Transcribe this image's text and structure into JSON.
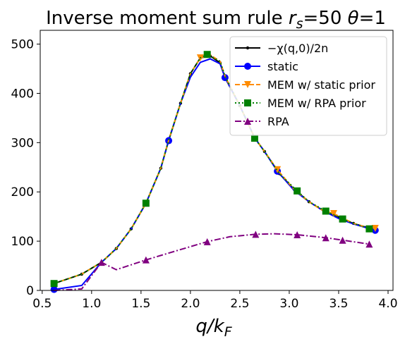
{
  "chart_data": {
    "type": "line",
    "title": "Inverse moment sum rule r_s=50 θ=1",
    "title_parts": {
      "prefix": "Inverse moment sum rule ",
      "r": "r",
      "r_sub": "s",
      "middle": "=50 ",
      "theta": "θ",
      "suffix": "=1"
    },
    "xlabel": "q/k_F",
    "xlabel_parts": {
      "q": "q/k",
      "sub": "F"
    },
    "ylabel": "",
    "xlim": [
      0.48,
      4.05
    ],
    "ylim": [
      0,
      528
    ],
    "xticks": [
      0.5,
      1.0,
      1.5,
      2.0,
      2.5,
      3.0,
      3.5,
      4.0
    ],
    "xtick_labels": [
      "0.5",
      "1.0",
      "1.5",
      "2.0",
      "2.5",
      "3.0",
      "3.5",
      "4.0"
    ],
    "yticks": [
      0,
      100,
      200,
      300,
      400,
      500
    ],
    "ytick_labels": [
      "0",
      "100",
      "200",
      "300",
      "400",
      "500"
    ],
    "grid": false,
    "legend_position": "top-right",
    "series": [
      {
        "name": "−χ(q,0)/2n",
        "color": "#000000",
        "linestyle": "solid",
        "marker": "dot",
        "x": [
          0.62,
          0.9,
          1.1,
          1.25,
          1.4,
          1.55,
          1.7,
          1.78,
          1.9,
          2.0,
          2.1,
          2.2,
          2.3,
          2.35,
          2.5,
          2.65,
          2.75,
          2.9,
          3.05,
          3.2,
          3.35,
          3.5,
          3.65,
          3.8,
          3.87
        ],
        "y": [
          14,
          33,
          57,
          85,
          125,
          177,
          248,
          305,
          380,
          440,
          472,
          476,
          462,
          432,
          375,
          310,
          282,
          237,
          205,
          180,
          161,
          148,
          136,
          127,
          122
        ],
        "show_markers": [
          0,
          1,
          2,
          3,
          4,
          5,
          6,
          7,
          8,
          9,
          10,
          11,
          12,
          13,
          14,
          15,
          16,
          17,
          18,
          19,
          20,
          21,
          22,
          23,
          24
        ]
      },
      {
        "name": "static",
        "color": "#0000ff",
        "linestyle": "solid",
        "marker": "circle",
        "x": [
          0.62,
          0.9,
          1.1,
          1.25,
          1.4,
          1.55,
          1.7,
          1.78,
          1.9,
          2.0,
          2.1,
          2.2,
          2.3,
          2.35,
          2.5,
          2.65,
          2.75,
          2.88,
          3.05,
          3.2,
          3.35,
          3.5,
          3.65,
          3.8,
          3.87
        ],
        "y": [
          2,
          10,
          57,
          85,
          125,
          177,
          248,
          304,
          380,
          433,
          463,
          470,
          460,
          432,
          375,
          310,
          282,
          242,
          203,
          180,
          161,
          146,
          135,
          126,
          122
        ],
        "show_markers": [
          0,
          7,
          13,
          17,
          24
        ]
      },
      {
        "name": "MEM w/ static prior",
        "color": "#ff8c00",
        "linestyle": "dashed",
        "marker": "triangle-down",
        "x": [
          0.62,
          0.9,
          1.1,
          1.25,
          1.4,
          1.55,
          1.7,
          1.78,
          1.9,
          2.0,
          2.1,
          2.2,
          2.3,
          2.35,
          2.5,
          2.65,
          2.75,
          2.88,
          3.05,
          3.2,
          3.35,
          3.45,
          3.65,
          3.8,
          3.87
        ],
        "y": [
          14,
          33,
          57,
          85,
          125,
          177,
          248,
          305,
          380,
          440,
          472,
          478,
          465,
          435,
          375,
          310,
          282,
          245,
          205,
          180,
          161,
          156,
          136,
          127,
          126
        ],
        "show_markers": [
          10,
          17,
          21,
          24
        ]
      },
      {
        "name": "MEM w/ RPA prior",
        "color": "#008000",
        "linestyle": "dotted",
        "marker": "square",
        "x": [
          0.62,
          0.9,
          1.1,
          1.25,
          1.4,
          1.55,
          1.7,
          1.78,
          1.9,
          2.0,
          2.1,
          2.17,
          2.3,
          2.35,
          2.5,
          2.65,
          2.75,
          2.9,
          3.08,
          3.2,
          3.37,
          3.54,
          3.65,
          3.81
        ],
        "y": [
          14,
          33,
          57,
          85,
          125,
          177,
          248,
          305,
          380,
          440,
          472,
          479,
          465,
          435,
          375,
          309,
          282,
          237,
          202,
          180,
          161,
          145,
          136,
          125
        ],
        "show_markers": [
          0,
          5,
          11,
          15,
          18,
          20,
          21,
          23
        ]
      },
      {
        "name": "RPA",
        "color": "#800080",
        "linestyle": "dashdot",
        "marker": "triangle-up",
        "x": [
          0.62,
          0.9,
          1.1,
          1.25,
          1.55,
          1.85,
          2.17,
          2.4,
          2.66,
          2.85,
          3.08,
          3.37,
          3.54,
          3.81
        ],
        "y": [
          0,
          3,
          57,
          42,
          62,
          80,
          99,
          109,
          114,
          115,
          113,
          107,
          102,
          94
        ],
        "show_markers": [
          2,
          4,
          6,
          8,
          10,
          11,
          12,
          13
        ]
      }
    ]
  }
}
